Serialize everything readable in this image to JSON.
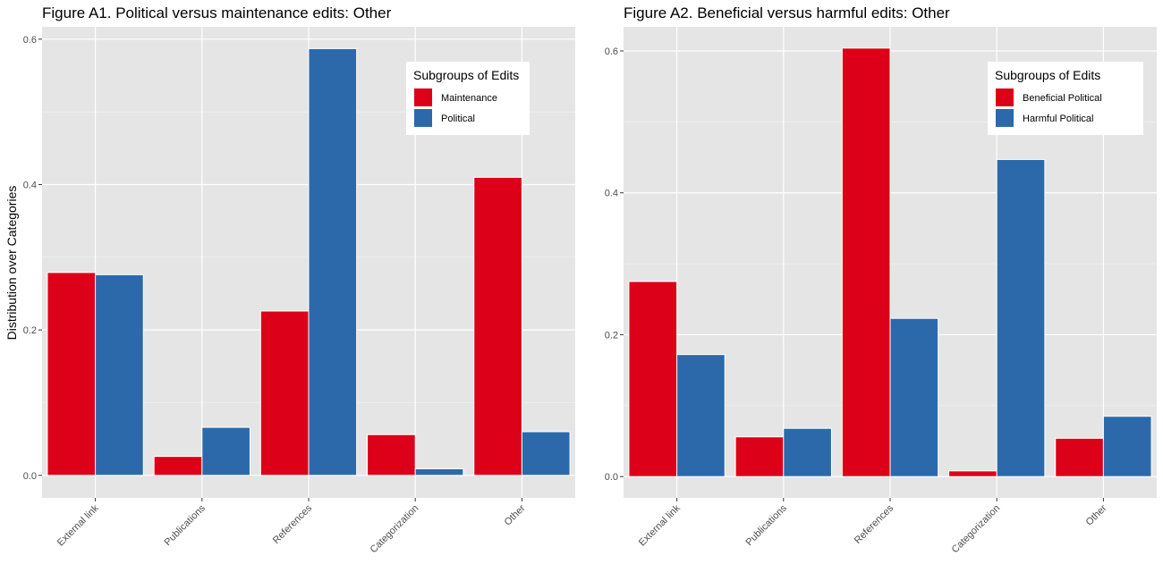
{
  "colors": {
    "red": "#dc0018",
    "blue": "#2b69aa",
    "panel": "#e5e5e5",
    "grid": "#ffffff"
  },
  "chart_data": [
    {
      "type": "bar",
      "title": "Figure A1. Political versus maintenance edits: Other",
      "xlabel": "",
      "ylabel": "Distribution over Categories",
      "categories": [
        "External link",
        "Publications",
        "References",
        "Categorization",
        "Other"
      ],
      "series": [
        {
          "name": "Maintenance",
          "color": "#dc0018",
          "values": [
            0.279,
            0.026,
            0.226,
            0.056,
            0.41
          ]
        },
        {
          "name": "Political",
          "color": "#2b69aa",
          "values": [
            0.276,
            0.066,
            0.587,
            0.009,
            0.06
          ]
        }
      ],
      "ylim": [
        -0.031,
        0.617
      ],
      "yticks": [
        0.0,
        0.2,
        0.4,
        0.6
      ],
      "ytick_labels": [
        "0.0",
        "0.2",
        "0.4",
        "0.6"
      ],
      "legend_title": "Subgroups of Edits",
      "legend_position": "top-right",
      "grid": true
    },
    {
      "type": "bar",
      "title": "Figure A2. Beneficial versus harmful edits: Other",
      "xlabel": "",
      "ylabel": "",
      "categories": [
        "External link",
        "Publications",
        "References",
        "Categorization",
        "Other"
      ],
      "series": [
        {
          "name": "Beneficial Political",
          "color": "#dc0018",
          "values": [
            0.275,
            0.056,
            0.604,
            0.008,
            0.054
          ]
        },
        {
          "name": "Harmful Political",
          "color": "#2b69aa",
          "values": [
            0.172,
            0.068,
            0.223,
            0.447,
            0.085
          ]
        }
      ],
      "ylim": [
        -0.03,
        0.634
      ],
      "yticks": [
        0.0,
        0.2,
        0.4,
        0.6
      ],
      "ytick_labels": [
        "0.0",
        "0.2",
        "0.4",
        "0.6"
      ],
      "legend_title": "Subgroups of Edits",
      "legend_position": "top-right",
      "grid": true
    }
  ]
}
